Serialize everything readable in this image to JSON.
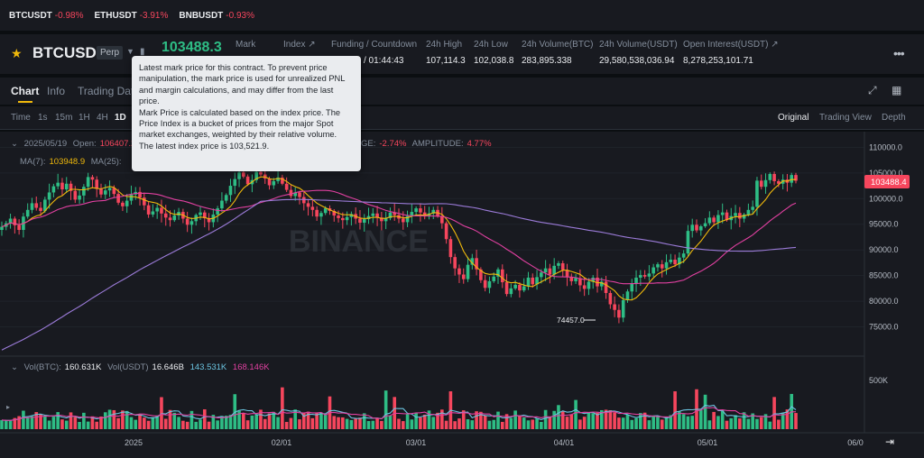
{
  "ticker": [
    {
      "symbol": "BTCUSDT",
      "change": "-0.98%"
    },
    {
      "symbol": "ETHUSDT",
      "change": "-3.91%"
    },
    {
      "symbol": "BNBUSDT",
      "change": "-0.93%"
    }
  ],
  "header": {
    "symbol": "BTCUSDT",
    "contract": "Perp",
    "last_price": "103488.3",
    "stats": {
      "mark": {
        "label": "Mark"
      },
      "index": {
        "label": "Index ↗"
      },
      "funding": {
        "label": "Funding / Countdown",
        "value": "/ 01:44:43"
      },
      "high": {
        "label": "24h High",
        "value": "107,114.3"
      },
      "low": {
        "label": "24h Low",
        "value": "102,038.8"
      },
      "vol_btc": {
        "label": "24h Volume(BTC)",
        "value": "283,895.338"
      },
      "vol_usdt": {
        "label": "24h Volume(USDT)",
        "value": "29,580,538,036.94"
      },
      "oi": {
        "label": "Open Interest(USDT) ↗",
        "value": "8,278,253,101.71"
      }
    }
  },
  "tabs": [
    "Chart",
    "Info",
    "Trading Data"
  ],
  "intervals": [
    "Time",
    "1s",
    "15m",
    "1H",
    "4H",
    "1D"
  ],
  "views": [
    "Original",
    "Trading View",
    "Depth"
  ],
  "tooltip": {
    "p1": "Latest mark price for this contract. To prevent price manipulation, the mark price is used for unrealized PNL and margin calculations, and may differ from the last price.",
    "p2": "Mark Price is calculated based on the index price. The Price Index is a bucket of prices from the major Spot market exchanges, weighted by their relative volume.",
    "p3": "The latest index price is 103,521.9."
  },
  "legend": {
    "date": "2025/05/19",
    "open_label": "Open:",
    "open_value": "106407.2",
    "change_label": "GE:",
    "change_value": "-2.74%",
    "amplitude_label": "AMPLITUDE:",
    "amplitude_value": "4.77%",
    "ma7_label": "MA(7):",
    "ma7_value": "103948.9",
    "ma25_label": "MA(25):",
    "vol_label": "Vol(BTC):",
    "vol_value": "160.631K",
    "volusdt_label": "Vol(USDT)",
    "volusdt_value": "16.646B",
    "vol_ma1": "143.531K",
    "vol_ma2": "168.146K"
  },
  "watermark": "BINANCE",
  "price_axis": [
    "110000.0",
    "105000.0",
    "100000.0",
    "95000.0",
    "90000.0",
    "85000.0",
    "80000.0",
    "75000.0"
  ],
  "current_price_tag": "103488.4",
  "low_marker": "74457.0",
  "volume_axis": [
    "500K"
  ],
  "time_axis": [
    "2025",
    "02/01",
    "03/01",
    "04/01",
    "05/01",
    "06/0"
  ],
  "colors": {
    "up": "#2ebd85",
    "down": "#f6465d",
    "ma7": "#f0b90b",
    "ma25": "#e040a0",
    "ma99": "#9b7bd8",
    "accent": "#f0b90b"
  },
  "chart_data": {
    "type": "candlestick",
    "interval": "1D",
    "ylim": [
      70000,
      112000
    ],
    "closes": [
      94500,
      95200,
      96100,
      94800,
      93900,
      96500,
      97800,
      99100,
      98200,
      97600,
      99800,
      101200,
      102400,
      103100,
      101800,
      102900,
      101500,
      99800,
      100600,
      102300,
      104200,
      103700,
      101900,
      100800,
      101600,
      102100,
      100900,
      99200,
      98500,
      99600,
      100800,
      101300,
      100200,
      98700,
      96900,
      97500,
      98200,
      97100,
      96300,
      95800,
      96700,
      97400,
      96100,
      94900,
      95600,
      96800,
      97300,
      96200,
      95400,
      96900,
      98100,
      99600,
      100700,
      102500,
      103800,
      105100,
      104300,
      102800,
      103600,
      105200,
      104700,
      103900,
      102600,
      103400,
      104100,
      102900,
      101700,
      100500,
      101200,
      100300,
      99100,
      98400,
      97800,
      96500,
      97200,
      98100,
      97600,
      96700,
      96200,
      95800,
      96400,
      97000,
      96100,
      95300,
      96000,
      96600,
      97100,
      96300,
      95600,
      96200,
      97300,
      96800,
      96100,
      95400,
      96600,
      97400,
      98100,
      97300,
      96500,
      97100,
      97800,
      96600,
      95200,
      92100,
      88600,
      86400,
      85200,
      84300,
      87100,
      88400,
      86200,
      84100,
      82600,
      83900,
      84800,
      86200,
      83700,
      81400,
      82500,
      83200,
      82100,
      82900,
      84600,
      83300,
      84700,
      85600,
      86400,
      85200,
      86900,
      87400,
      86100,
      84700,
      83900,
      84500,
      83100,
      82400,
      83800,
      84600,
      82900,
      83800,
      81600,
      79400,
      78300,
      76800,
      80200,
      81900,
      83500,
      84600,
      85100,
      84800,
      85400,
      86600,
      87200,
      86400,
      87600,
      88100,
      87200,
      88500,
      89300,
      93700,
      94900,
      93800,
      94600,
      95200,
      96300,
      95400,
      96800,
      97300,
      95800,
      96600,
      97200,
      96100,
      96900,
      97800,
      98400,
      103500,
      102300,
      103600,
      104800,
      103400,
      102900,
      103700,
      103100,
      104600,
      103488
    ],
    "ma_series": [
      "MA(7)",
      "MA(25)",
      "MA(99)"
    ],
    "annotations": {
      "low": 74457.0,
      "last": 103488.4
    }
  }
}
